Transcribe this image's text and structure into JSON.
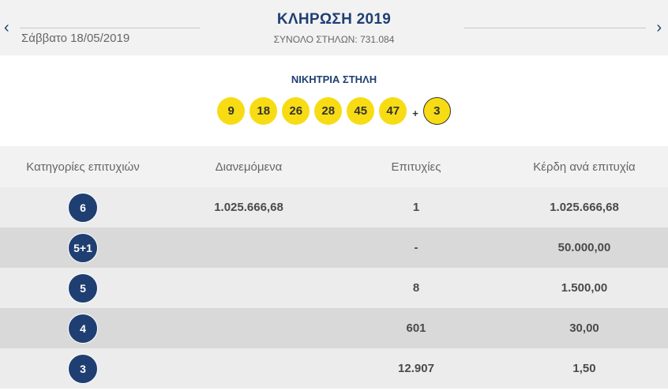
{
  "header": {
    "draw_title": "ΚΛΗΡΩΣΗ 2019",
    "date": "Σάββατο 18/05/2019",
    "columns_count": "ΣΥΝΟΛΟ ΣΤΗΛΩΝ: 731.084",
    "prev_icon": "chevron-left",
    "next_icon": "chevron-right"
  },
  "winning": {
    "title": "ΝΙΚΗΤΡΙΑ ΣΤΗΛΗ",
    "numbers": [
      "9",
      "18",
      "26",
      "28",
      "45",
      "47"
    ],
    "plus": "+",
    "joker": "3",
    "ball_color": "#f7dc14"
  },
  "table": {
    "headers": [
      "Κατηγορίες επιτυχιών",
      "Διανεμόμενα",
      "Επιτυχίες",
      "Κέρδη ανά επιτυχία"
    ],
    "rows": [
      {
        "category": "6",
        "distributed": "1.025.666,68",
        "winners": "1",
        "prize": "1.025.666,68"
      },
      {
        "category": "5+1",
        "distributed": "",
        "winners": "-",
        "prize": "50.000,00"
      },
      {
        "category": "5",
        "distributed": "",
        "winners": "8",
        "prize": "1.500,00"
      },
      {
        "category": "4",
        "distributed": "",
        "winners": "601",
        "prize": "30,00"
      },
      {
        "category": "3",
        "distributed": "",
        "winners": "12.907",
        "prize": "1,50"
      }
    ],
    "badge_color": "#1f3f73"
  }
}
